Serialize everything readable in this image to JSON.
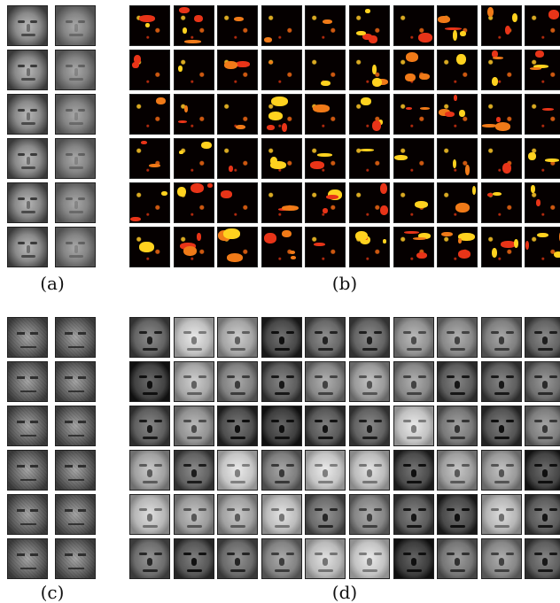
{
  "panels": {
    "a": {
      "caption": "(a)",
      "rows": 6,
      "cols": 2
    },
    "b": {
      "caption": "(b)",
      "rows": 6,
      "cols": 10
    },
    "c": {
      "caption": "(c)",
      "rows": 6,
      "cols": 2
    },
    "d": {
      "caption": "(d)",
      "rows": 6,
      "cols": 10
    }
  },
  "colors": {
    "heat_background": "#050000",
    "heat_red": "#e83418",
    "heat_yellow": "#ffd21f",
    "heat_orange": "#f07a18",
    "tile_border": "#222222"
  }
}
